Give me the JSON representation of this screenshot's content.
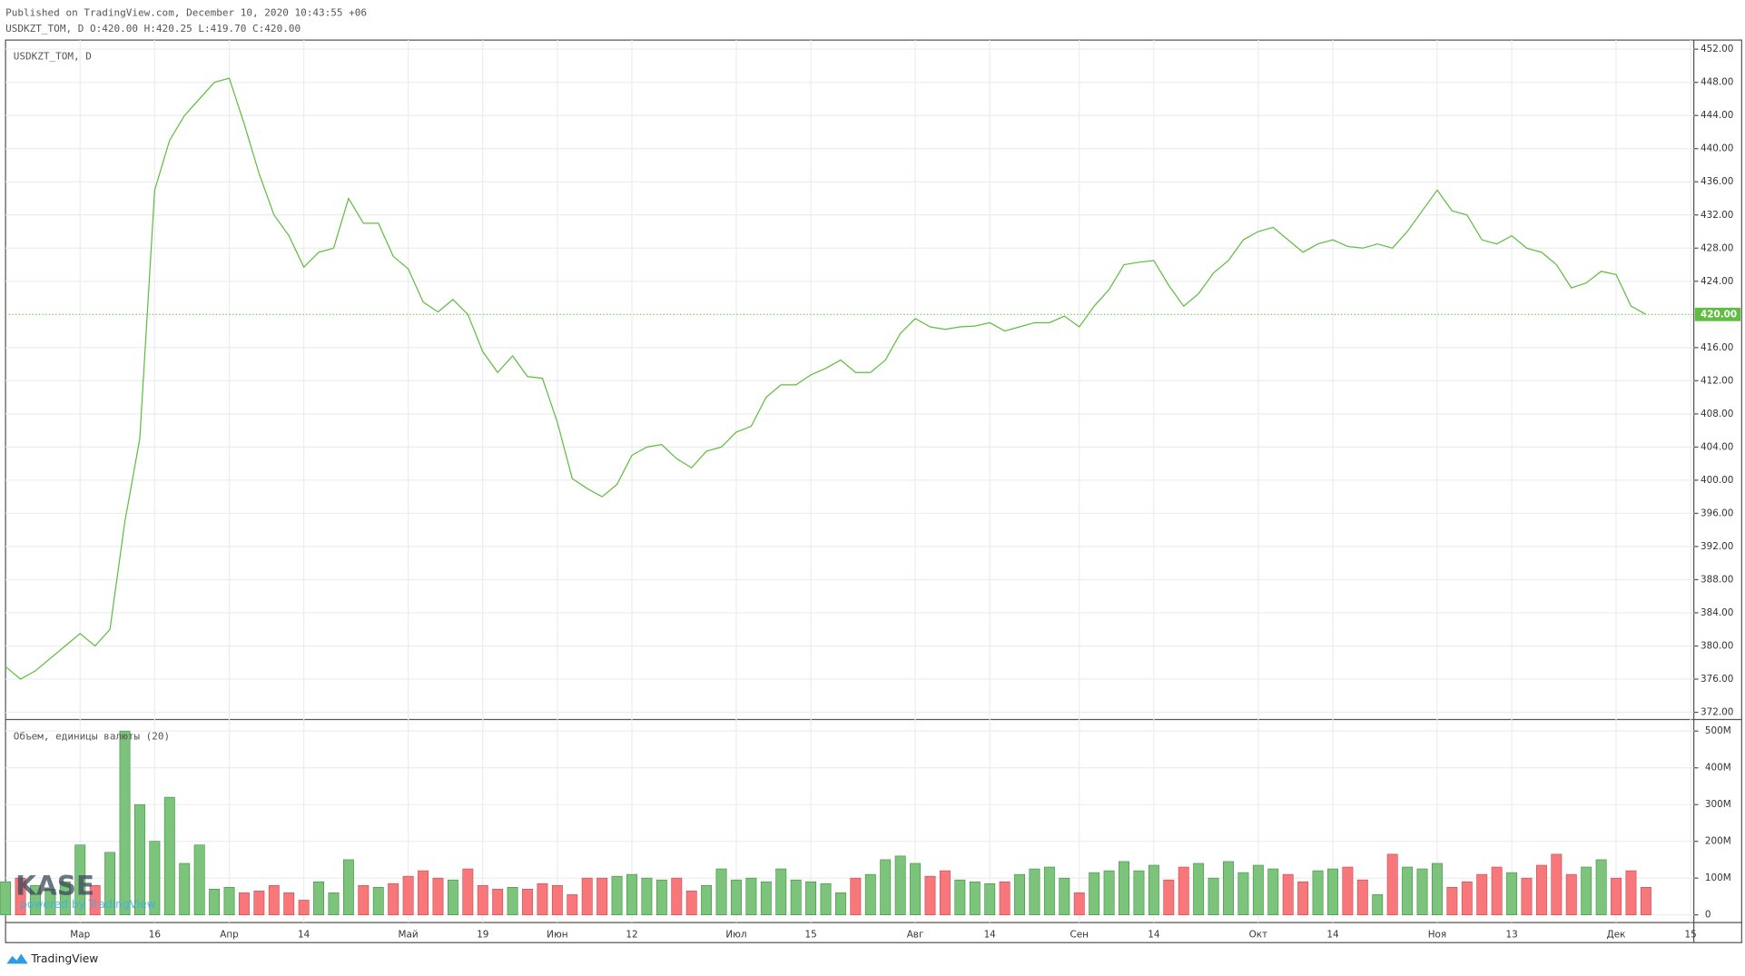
{
  "header": {
    "published": "Published on TradingView.com, December 10, 2020 10:43:55 +06",
    "ohlc": "USDKZT_TOM, D O:420.00 H:420.25 L:419.70 C:420.00"
  },
  "footer": {
    "brand": "TradingView"
  },
  "watermark": {
    "logo": "KASE",
    "tagline": "powered by TradingView"
  },
  "chart_data": [
    {
      "type": "line",
      "legend": "USDKZT_TOM, D",
      "color": "#5fbd3f",
      "categories": [
        null,
        null,
        null,
        null,
        null,
        "Мар",
        null,
        null,
        null,
        null,
        "16",
        null,
        null,
        null,
        null,
        "Апр",
        null,
        null,
        null,
        null,
        "14",
        null,
        null,
        null,
        null,
        null,
        null,
        "Май",
        null,
        null,
        null,
        null,
        "19",
        null,
        null,
        null,
        null,
        "Июн",
        null,
        null,
        null,
        null,
        "12",
        null,
        null,
        null,
        null,
        null,
        null,
        "Июл",
        null,
        null,
        null,
        null,
        "15",
        null,
        null,
        null,
        null,
        null,
        null,
        "Авг",
        null,
        null,
        null,
        null,
        "14",
        null,
        null,
        null,
        null,
        null,
        "Сен",
        null,
        null,
        null,
        null,
        "14",
        null,
        null,
        null,
        null,
        null,
        null,
        "Окт",
        null,
        null,
        null,
        null,
        "14",
        null,
        null,
        null,
        null,
        null,
        null,
        "Ноя",
        null,
        null,
        null,
        null,
        "13",
        null,
        null,
        null,
        null,
        null,
        null,
        "Дек",
        null,
        null,
        null,
        null,
        "15"
      ],
      "values": [
        377.5,
        376,
        377,
        378.5,
        380,
        381.5,
        380,
        382,
        395,
        405,
        435,
        441,
        444,
        446,
        448,
        448.5,
        443,
        437,
        432,
        429.5,
        425.7,
        427.5,
        428,
        434,
        431,
        431,
        427,
        425.5,
        421.5,
        420.3,
        421.8,
        420,
        415.5,
        413,
        415,
        412.5,
        412.3,
        407,
        400.2,
        399,
        398,
        399.5,
        403,
        404,
        404.3,
        402.6,
        401.5,
        403.5,
        404,
        405.8,
        406.5,
        410,
        411.5,
        411.5,
        412.7,
        413.5,
        414.5,
        413,
        413,
        414.5,
        417.7,
        419.5,
        418.5,
        418.2,
        418.5,
        418.6,
        419,
        418,
        418.5,
        419,
        419,
        419.8,
        418.5,
        421,
        423,
        426,
        426.3,
        426.5,
        423.5,
        421,
        422.5,
        425,
        426.5,
        429,
        430,
        430.5,
        429,
        427.5,
        428.5,
        429,
        428.2,
        428,
        428.5,
        428,
        430,
        432.5,
        435,
        432.5,
        432,
        429,
        428.5,
        429.5,
        428,
        427.5,
        426,
        423.2,
        423.8,
        425.2,
        424.8,
        421,
        420,
        null,
        null,
        null
      ],
      "last_value": {
        "value": 420,
        "label": "420.00"
      },
      "ylim": [
        371.2,
        453.1
      ],
      "yticks": [
        {
          "value": 372,
          "label": "372.00"
        },
        {
          "value": 376,
          "label": "376.00"
        },
        {
          "value": 380,
          "label": "380.00"
        },
        {
          "value": 384,
          "label": "384.00"
        },
        {
          "value": 388,
          "label": "388.00"
        },
        {
          "value": 392,
          "label": "392.00"
        },
        {
          "value": 396,
          "label": "396.00"
        },
        {
          "value": 400,
          "label": "400.00"
        },
        {
          "value": 404,
          "label": "404.00"
        },
        {
          "value": 408,
          "label": "408.00"
        },
        {
          "value": 412,
          "label": "412.00"
        },
        {
          "value": 416,
          "label": "416.00"
        },
        {
          "value": 424,
          "label": "424.00"
        },
        {
          "value": 428,
          "label": "428.00"
        },
        {
          "value": 432,
          "label": "432.00"
        },
        {
          "value": 436,
          "label": "436.00"
        },
        {
          "value": 440,
          "label": "440.00"
        },
        {
          "value": 444,
          "label": "444.00"
        },
        {
          "value": 448,
          "label": "448.00"
        },
        {
          "value": 452,
          "label": "452.00"
        }
      ],
      "grid": true
    },
    {
      "type": "bar",
      "legend": "Объем, единицы валюты (20)",
      "up_color": "#7cc47c",
      "down_color": "#f7777b",
      "values": [
        90000000,
        100000000,
        80000000,
        70000000,
        90000000,
        190000000,
        80000000,
        170000000,
        500000000,
        300000000,
        200000000,
        320000000,
        140000000,
        190000000,
        70000000,
        75000000,
        60000000,
        65000000,
        80000000,
        60000000,
        40000000,
        90000000,
        60000000,
        150000000,
        80000000,
        75000000,
        85000000,
        105000000,
        120000000,
        100000000,
        95000000,
        125000000,
        80000000,
        70000000,
        75000000,
        70000000,
        85000000,
        80000000,
        55000000,
        100000000,
        100000000,
        105000000,
        110000000,
        100000000,
        95000000,
        100000000,
        65000000,
        80000000,
        125000000,
        95000000,
        100000000,
        90000000,
        125000000,
        95000000,
        90000000,
        85000000,
        60000000,
        100000000,
        110000000,
        150000000,
        160000000,
        140000000,
        105000000,
        120000000,
        95000000,
        90000000,
        85000000,
        90000000,
        110000000,
        125000000,
        130000000,
        100000000,
        60000000,
        115000000,
        120000000,
        145000000,
        120000000,
        135000000,
        95000000,
        130000000,
        140000000,
        100000000,
        145000000,
        115000000,
        135000000,
        125000000,
        110000000,
        90000000,
        120000000,
        125000000,
        130000000,
        95000000,
        55000000,
        165000000,
        130000000,
        125000000,
        140000000,
        75000000,
        90000000,
        110000000,
        130000000,
        115000000,
        100000000,
        135000000,
        165000000,
        110000000,
        130000000,
        150000000,
        100000000,
        120000000,
        75000000
      ],
      "ylim": [
        -21000000,
        530000000
      ],
      "yticks": [
        0,
        {
          "value": 100000000,
          "label": "100M"
        },
        {
          "value": 200000000,
          "label": "200M"
        },
        {
          "value": 300000000,
          "label": "300M"
        },
        {
          "value": 400000000,
          "label": "400M"
        },
        {
          "value": 500000000,
          "label": "500M"
        }
      ]
    }
  ]
}
